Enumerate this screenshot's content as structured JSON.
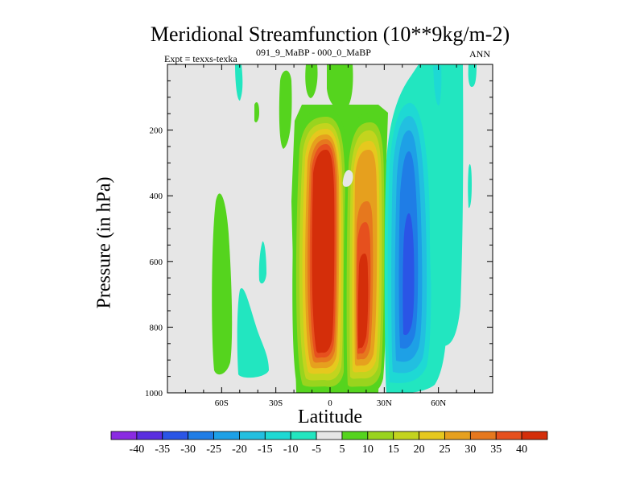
{
  "chart_data": {
    "type": "contour",
    "title": "Meridional Streamfunction (10**9kg/m-2)",
    "subtitle_left": "Expt = texxs-texka",
    "subtitle_center": "091_9_MaBP - 000_0_MaBP",
    "subtitle_right": "ANN",
    "xlabel": "Latitude",
    "ylabel": "Pressure (in hPa)",
    "xlim": [
      -90,
      90
    ],
    "ylim": [
      1000,
      0
    ],
    "x_ticks": [
      "60S",
      "30S",
      "0",
      "30N",
      "60N"
    ],
    "x_tick_values": [
      -60,
      -30,
      0,
      30,
      60
    ],
    "y_ticks": [
      "200",
      "400",
      "600",
      "800",
      "1000"
    ],
    "y_tick_values": [
      200,
      400,
      600,
      800,
      1000
    ],
    "colorbar_labels": [
      "-40",
      "-35",
      "-30",
      "-25",
      "-20",
      "-15",
      "-10",
      "-5",
      "5",
      "10",
      "15",
      "20",
      "25",
      "30",
      "35",
      "40"
    ],
    "colorbar_colors": [
      "#8a2be2",
      "#5a2ee0",
      "#2a55e6",
      "#1f7de6",
      "#1ea0e6",
      "#22bfe0",
      "#1ed9d4",
      "#22e6c0",
      "#e6e6e6",
      "#55d41e",
      "#99d41e",
      "#c3d41e",
      "#e6c81e",
      "#e6a01e",
      "#e6781e",
      "#e6501e",
      "#d42e0a"
    ],
    "features": [
      {
        "name": "nh-cell-core",
        "lat_min": -20,
        "lat_max": 10,
        "p_min": 130,
        "p_max": 990,
        "value": 40
      },
      {
        "name": "secondary-cell",
        "lat_min": 10,
        "lat_max": 30,
        "p_min": 130,
        "p_max": 990,
        "value": 30
      },
      {
        "name": "negative-cell",
        "lat_min": 30,
        "lat_max": 52,
        "p_min": 100,
        "p_max": 990,
        "value": -25
      }
    ]
  }
}
